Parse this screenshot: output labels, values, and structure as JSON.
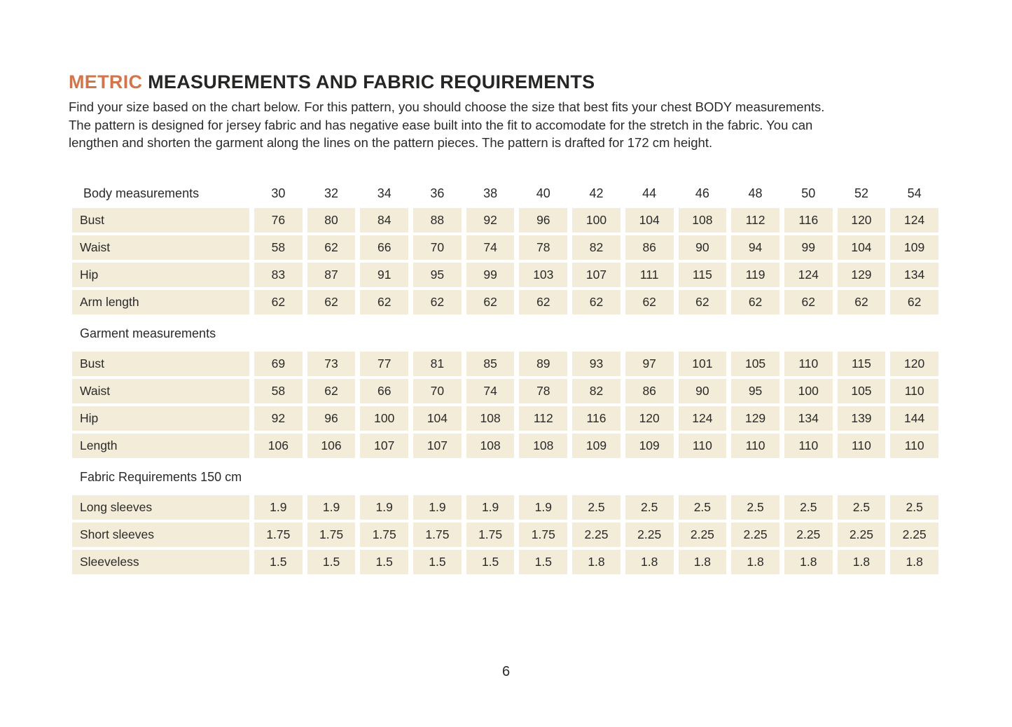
{
  "title": {
    "highlight": "METRIC",
    "rest": " MEASUREMENTS AND FABRIC REQUIREMENTS"
  },
  "intro_lines": [
    "Find your size based on the chart below. For this pattern, you should choose the size that best fits your chest BODY measurements.",
    "The pattern is designed for jersey fabric and has negative ease built into the fit to accomodate for the stretch in the fabric. You can",
    "lengthen and shorten the garment along the lines on the pattern pieces. The pattern is drafted for 172 cm height."
  ],
  "colors": {
    "accent_orange": "#d0764a",
    "cell_beige": "#f2ecd9",
    "text_dark": "#2b2a29"
  },
  "table": {
    "sizes": [
      "30",
      "32",
      "34",
      "36",
      "38",
      "40",
      "42",
      "44",
      "46",
      "48",
      "50",
      "52",
      "54"
    ],
    "sections": [
      {
        "header": "Body measurements",
        "rows": [
          {
            "label": "Bust",
            "values": [
              "76",
              "80",
              "84",
              "88",
              "92",
              "96",
              "100",
              "104",
              "108",
              "112",
              "116",
              "120",
              "124"
            ]
          },
          {
            "label": "Waist",
            "values": [
              "58",
              "62",
              "66",
              "70",
              "74",
              "78",
              "82",
              "86",
              "90",
              "94",
              "99",
              "104",
              "109"
            ]
          },
          {
            "label": "Hip",
            "values": [
              "83",
              "87",
              "91",
              "95",
              "99",
              "103",
              "107",
              "111",
              "115",
              "119",
              "124",
              "129",
              "134"
            ]
          },
          {
            "label": "Arm length",
            "values": [
              "62",
              "62",
              "62",
              "62",
              "62",
              "62",
              "62",
              "62",
              "62",
              "62",
              "62",
              "62",
              "62"
            ]
          }
        ]
      },
      {
        "header": "Garment measurements",
        "rows": [
          {
            "label": "Bust",
            "values": [
              "69",
              "73",
              "77",
              "81",
              "85",
              "89",
              "93",
              "97",
              "101",
              "105",
              "110",
              "115",
              "120"
            ]
          },
          {
            "label": "Waist",
            "values": [
              "58",
              "62",
              "66",
              "70",
              "74",
              "78",
              "82",
              "86",
              "90",
              "95",
              "100",
              "105",
              "110"
            ]
          },
          {
            "label": "Hip",
            "values": [
              "92",
              "96",
              "100",
              "104",
              "108",
              "112",
              "116",
              "120",
              "124",
              "129",
              "134",
              "139",
              "144"
            ]
          },
          {
            "label": "Length",
            "values": [
              "106",
              "106",
              "107",
              "107",
              "108",
              "108",
              "109",
              "109",
              "110",
              "110",
              "110",
              "110",
              "110"
            ]
          }
        ]
      },
      {
        "header": "Fabric Requirements 150 cm",
        "rows": [
          {
            "label": "Long sleeves",
            "values": [
              "1.9",
              "1.9",
              "1.9",
              "1.9",
              "1.9",
              "1.9",
              "2.5",
              "2.5",
              "2.5",
              "2.5",
              "2.5",
              "2.5",
              "2.5"
            ]
          },
          {
            "label": "Short sleeves",
            "values": [
              "1.75",
              "1.75",
              "1.75",
              "1.75",
              "1.75",
              "1.75",
              "2.25",
              "2.25",
              "2.25",
              "2.25",
              "2.25",
              "2.25",
              "2.25"
            ]
          },
          {
            "label": "Sleeveless",
            "values": [
              "1.5",
              "1.5",
              "1.5",
              "1.5",
              "1.5",
              "1.5",
              "1.8",
              "1.8",
              "1.8",
              "1.8",
              "1.8",
              "1.8",
              "1.8"
            ]
          }
        ]
      }
    ]
  },
  "page_number": "6"
}
